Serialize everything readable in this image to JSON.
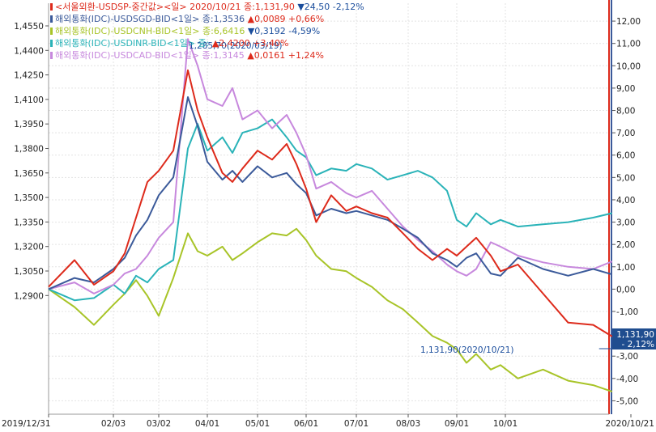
{
  "chart_data": {
    "type": "line",
    "x_labels": [
      "2019/12/31",
      "02/03",
      "03/02",
      "04/01",
      "05/01",
      "06/01",
      "07/01",
      "08/03",
      "09/01",
      "10/01",
      "2020/10/21"
    ],
    "left_axis": {
      "ticks": [
        1.29,
        1.305,
        1.32,
        1.335,
        1.35,
        1.365,
        1.38,
        1.395,
        1.41,
        1.425,
        1.44,
        1.455
      ],
      "tick_labels": [
        "1,2900",
        "1,3050",
        "1,3200",
        "1,3350",
        "1,3500",
        "1,3650",
        "1,3800",
        "1,3950",
        "1,4100",
        "1,4250",
        "1,4400",
        "1,4550"
      ]
    },
    "right_axis": {
      "unit": "%",
      "ticks": [
        -5,
        -4,
        -3,
        -2,
        -1,
        0,
        1,
        2,
        3,
        4,
        5,
        6,
        7,
        8,
        9,
        10,
        11,
        12
      ],
      "tick_labels": [
        "-5,00",
        "-4,00",
        "-3,00",
        "-2,00",
        "-1,00",
        "0,00",
        "1,00",
        "2,00",
        "3,00",
        "4,00",
        "5,00",
        "6,00",
        "7,00",
        "8,00",
        "9,00",
        "10,00",
        "11,00",
        "12,00"
      ],
      "ylim": [
        -5.6,
        12.8
      ]
    },
    "legend": [
      {
        "text": "<서울외환-USDSP-중간값><일> 2020/10/21 종:1,131,90",
        "change": "▼24,50",
        "pct": "-2,12%",
        "color": "#dd2a1b",
        "change_color": "#1a4d9c"
      },
      {
        "text": "해외통화(IDC)-USDSGD-BID<1일> 종:1,3536",
        "change": "▲0,0089",
        "pct": "+0,66%",
        "color": "#3b5a9a",
        "change_color": "#dd2a1b"
      },
      {
        "text": "해외통화(IDC)-USDCNH-BID<1일> 종:6,6416",
        "change": "▼0,3192",
        "pct": "-4,59%",
        "color": "#a8c428",
        "change_color": "#1a4d9c"
      },
      {
        "text": "해외통화(IDC)-USDINR-BID<1일> 종:",
        "change": "▲2,4200",
        "pct": "+3,40%",
        "color": "#2ab3b8",
        "change_color": "#dd2a1b"
      },
      {
        "text": "해외통화(IDC)-USDCAD-BID<1일> 종:1,3145",
        "change": "▲0,0161",
        "pct": "+1,24%",
        "color": "#c788dd",
        "change_color": "#dd2a1b"
      }
    ],
    "peak_annotation": "1,285,70(2020/03/19)",
    "last_annotation": "1,131,90(2020/10/21)",
    "last_badge": {
      "value": "1,131,90",
      "pct": "- 2,12%"
    },
    "series": [
      {
        "name": "USDSP",
        "color": "#dd2a1b",
        "x": [
          0,
          0.4,
          0.7,
          1,
          1.25,
          1.5,
          1.75,
          2,
          2.3,
          2.6,
          2.8,
          3,
          3.3,
          3.5,
          3.7,
          4,
          4.3,
          4.6,
          4.8,
          5,
          5.2,
          5.5,
          5.8,
          6,
          6.3,
          6.6,
          6.9,
          7.2,
          7.5,
          7.8,
          8,
          8.2,
          8.4,
          8.7,
          8.9,
          9.1,
          9.3,
          9.5,
          9.7,
          9.85
        ],
        "values": [
          0.1,
          1.3,
          0.2,
          0.8,
          1.6,
          3.2,
          4.8,
          5.3,
          6.2,
          9.8,
          8.0,
          6.8,
          5.2,
          4.8,
          5.4,
          6.2,
          5.8,
          6.5,
          5.6,
          4.5,
          3.0,
          4.2,
          3.5,
          3.7,
          3.4,
          3.2,
          2.5,
          1.8,
          1.3,
          1.8,
          1.5,
          1.9,
          2.3,
          1.5,
          0.8,
          1.1,
          -0.2,
          -1.5,
          -1.6,
          -2.12
        ]
      },
      {
        "name": "USDSGD",
        "color": "#3b5a9a",
        "x": [
          0,
          0.4,
          0.7,
          1,
          1.25,
          1.5,
          1.75,
          2,
          2.3,
          2.6,
          2.8,
          3,
          3.3,
          3.5,
          3.7,
          4,
          4.3,
          4.6,
          4.8,
          5,
          5.2,
          5.5,
          5.8,
          6,
          6.3,
          6.6,
          6.9,
          7.2,
          7.5,
          7.8,
          8,
          8.2,
          8.4,
          8.7,
          8.9,
          9.1,
          9.3,
          9.5,
          9.7,
          9.85
        ],
        "values": [
          0.0,
          0.5,
          0.3,
          0.9,
          1.4,
          2.4,
          3.1,
          4.2,
          5.0,
          8.6,
          7.3,
          5.7,
          4.9,
          5.3,
          4.8,
          5.5,
          5.0,
          5.2,
          4.7,
          4.3,
          3.3,
          3.6,
          3.4,
          3.5,
          3.3,
          3.1,
          2.7,
          2.3,
          1.6,
          1.3,
          1.0,
          1.4,
          1.6,
          0.7,
          0.6,
          1.4,
          0.9,
          0.6,
          0.9,
          0.66
        ]
      },
      {
        "name": "USDCNH",
        "color": "#a8c428",
        "x": [
          0,
          0.4,
          0.7,
          1,
          1.25,
          1.5,
          1.75,
          2,
          2.3,
          2.6,
          2.8,
          3,
          3.3,
          3.5,
          3.7,
          4,
          4.3,
          4.6,
          4.8,
          5,
          5.2,
          5.5,
          5.8,
          6,
          6.3,
          6.6,
          6.9,
          7.2,
          7.5,
          7.8,
          8,
          8.2,
          8.4,
          8.7,
          8.9,
          9.1,
          9.3,
          9.5,
          9.7,
          9.85
        ],
        "values": [
          0.0,
          -0.8,
          -1.6,
          -0.7,
          -0.2,
          0.4,
          -0.3,
          -1.2,
          0.5,
          2.5,
          1.7,
          1.5,
          1.9,
          1.3,
          1.6,
          2.1,
          2.5,
          2.4,
          2.7,
          2.2,
          1.5,
          0.9,
          0.8,
          0.5,
          0.1,
          -0.5,
          -0.9,
          -1.5,
          -2.1,
          -2.4,
          -2.7,
          -3.3,
          -2.9,
          -3.6,
          -3.4,
          -4.0,
          -3.6,
          -4.1,
          -4.3,
          -4.59
        ]
      },
      {
        "name": "USDINR",
        "color": "#2ab3b8",
        "x": [
          0,
          0.4,
          0.7,
          1,
          1.25,
          1.5,
          1.75,
          2,
          2.3,
          2.6,
          2.8,
          3,
          3.3,
          3.5,
          3.7,
          4,
          4.3,
          4.6,
          4.8,
          5,
          5.2,
          5.5,
          5.8,
          6,
          6.3,
          6.6,
          6.9,
          7.2,
          7.5,
          7.8,
          8,
          8.2,
          8.4,
          8.7,
          8.9,
          9.1,
          9.3,
          9.5,
          9.7,
          9.85
        ],
        "values": [
          0.0,
          -0.5,
          -0.4,
          0.2,
          -0.2,
          0.6,
          0.3,
          0.9,
          1.3,
          6.3,
          7.4,
          6.2,
          6.8,
          6.1,
          7.0,
          7.2,
          7.6,
          6.8,
          6.2,
          5.9,
          5.1,
          5.4,
          5.3,
          5.6,
          5.4,
          4.9,
          5.1,
          5.3,
          5.0,
          4.4,
          3.1,
          2.8,
          3.4,
          2.9,
          3.1,
          2.8,
          2.9,
          3.0,
          3.2,
          3.4
        ]
      },
      {
        "name": "USDCAD",
        "color": "#c788dd",
        "x": [
          0,
          0.4,
          0.7,
          1,
          1.25,
          1.5,
          1.75,
          2,
          2.3,
          2.6,
          2.8,
          3,
          3.3,
          3.5,
          3.7,
          4,
          4.3,
          4.6,
          4.8,
          5,
          5.2,
          5.5,
          5.8,
          6,
          6.3,
          6.6,
          6.9,
          7.2,
          7.5,
          7.8,
          8,
          8.2,
          8.4,
          8.7,
          8.9,
          9.1,
          9.3,
          9.5,
          9.7,
          9.85
        ],
        "values": [
          0.0,
          0.3,
          -0.2,
          0.2,
          0.7,
          0.9,
          1.5,
          2.3,
          3.0,
          11.2,
          10.0,
          8.5,
          8.2,
          9.0,
          7.6,
          8.0,
          7.2,
          7.8,
          7.0,
          6.0,
          4.5,
          4.8,
          4.3,
          4.1,
          4.4,
          3.6,
          2.8,
          2.2,
          1.7,
          1.1,
          0.8,
          0.6,
          0.9,
          2.1,
          1.9,
          1.5,
          1.2,
          1.0,
          0.9,
          1.24
        ]
      }
    ]
  }
}
